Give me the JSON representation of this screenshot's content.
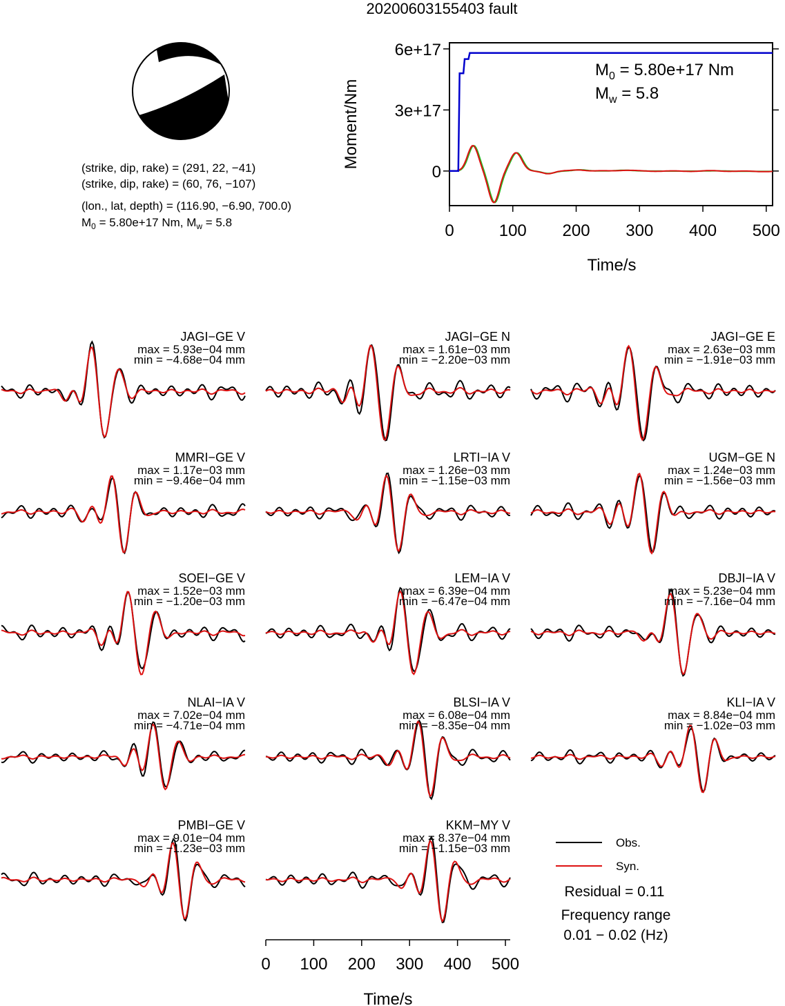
{
  "title": "20200603155403 fault",
  "event_info": {
    "plane1": "(strike, dip, rake) = (291, 22, −41)",
    "plane2": "(strike, dip, rake) = (60, 76, −107)",
    "location": "(lon., lat, depth) = (116.90, −6.90, 700.0)",
    "moment_line": "M0 = 5.80e+17 Nm, Mw = 5.8",
    "moment_prefix": "M",
    "moment_sub": "0",
    "moment_rest": " = 5.80e+17 Nm, M",
    "mw_sub": "w",
    "mw_rest": " = 5.8"
  },
  "colors": {
    "observed": "#000000",
    "synthetic": "#dd1111",
    "moment": "#0000cc",
    "moment_rate": "#22bb22",
    "beachball": "#000000"
  },
  "chart_data": [
    {
      "type": "line",
      "panel": "moment-function",
      "xlabel": "Time/s",
      "ylabel": "Moment/Nm",
      "xlim": [
        0,
        510
      ],
      "ylim": [
        -1.7e+17,
        6.3e+17
      ],
      "xticks": [
        0,
        100,
        200,
        300,
        400,
        500
      ],
      "yticks": [
        0,
        3e+17,
        6e+17
      ],
      "ytick_labels": [
        "0",
        "3e+17",
        "6e+17"
      ],
      "annotation_m0_prefix": "M",
      "annotation_m0_sub": "0",
      "annotation_m0_rest": " = 5.80e+17 Nm",
      "annotation_mw_prefix": "M",
      "annotation_mw_sub": "w",
      "annotation_mw_rest": " = 5.8",
      "moment_steps": [
        [
          0,
          0
        ],
        [
          14,
          0
        ],
        [
          16,
          4.8e+17
        ],
        [
          22,
          4.8e+17
        ],
        [
          24,
          5.5e+17
        ],
        [
          30,
          5.5e+17
        ],
        [
          32,
          5.8e+17
        ],
        [
          510,
          5.8e+17
        ]
      ],
      "moment_rate_pulses": [
        [
          37,
          1.25e+17,
          12
        ],
        [
          70,
          -1.55e+17,
          12
        ],
        [
          105,
          9e+16,
          13
        ],
        [
          155,
          -1.2e+16,
          14
        ],
        [
          205,
          6000000000000000.0,
          15
        ],
        [
          275,
          4000000000000000.0,
          18
        ],
        [
          420,
          2000000000000000.0,
          25
        ]
      ]
    },
    {
      "type": "line",
      "panel": "waveform-comparison",
      "xlabel": "Time/s",
      "xlim": [
        0,
        510
      ],
      "xticks": [
        0,
        100,
        200,
        300,
        400,
        500
      ],
      "legend": [
        {
          "name": "Obs.",
          "color": "#000000"
        },
        {
          "name": "Syn.",
          "color": "#dd1111"
        }
      ],
      "residual": "Residual = 0.11",
      "frequency_label": "Frequency range",
      "frequency_range": "0.01 − 0.02 (Hz)",
      "stations": [
        {
          "name": "JAGI−GE V",
          "max": "max = 5.93e−04 mm",
          "min": "min = −4.68e−04 mm"
        },
        {
          "name": "JAGI−GE N",
          "max": "max = 1.61e−03 mm",
          "min": "min = −2.20e−03 mm"
        },
        {
          "name": "JAGI−GE E",
          "max": "max = 2.63e−03 mm",
          "min": "min = −1.91e−03 mm"
        },
        {
          "name": "MMRI−GE V",
          "max": "max = 1.17e−03 mm",
          "min": "min = −9.46e−04 mm"
        },
        {
          "name": "LRTI−IA V",
          "max": "max = 1.26e−03 mm",
          "min": "min = −1.15e−03 mm"
        },
        {
          "name": "UGM−GE N",
          "max": "max = 1.24e−03 mm",
          "min": "min = −1.56e−03 mm"
        },
        {
          "name": "SOEI−GE V",
          "max": "max = 1.52e−03 mm",
          "min": "min = −1.20e−03 mm"
        },
        {
          "name": "LEM−IA V",
          "max": "max = 6.39e−04 mm",
          "min": "min = −6.47e−04 mm"
        },
        {
          "name": "DBJI−IA V",
          "max": "max = 5.23e−04 mm",
          "min": "min = −7.16e−04 mm"
        },
        {
          "name": "NLAI−IA V",
          "max": "max = 7.02e−04 mm",
          "min": "min = −4.71e−04 mm"
        },
        {
          "name": "BLSI−IA V",
          "max": "max = 6.08e−04 mm",
          "min": "min = −8.35e−04 mm"
        },
        {
          "name": "KLI−IA V",
          "max": "max = 8.84e−04 mm",
          "min": "min = −1.02e−03 mm"
        },
        {
          "name": "PMBI−GE V",
          "max": "max = 9.01e−04 mm",
          "min": "min = −1.23e−03 mm"
        },
        {
          "name": "KKM−MY V",
          "max": "max = 8.37e−04 mm",
          "min": "min = −1.15e−03 mm"
        }
      ]
    }
  ]
}
